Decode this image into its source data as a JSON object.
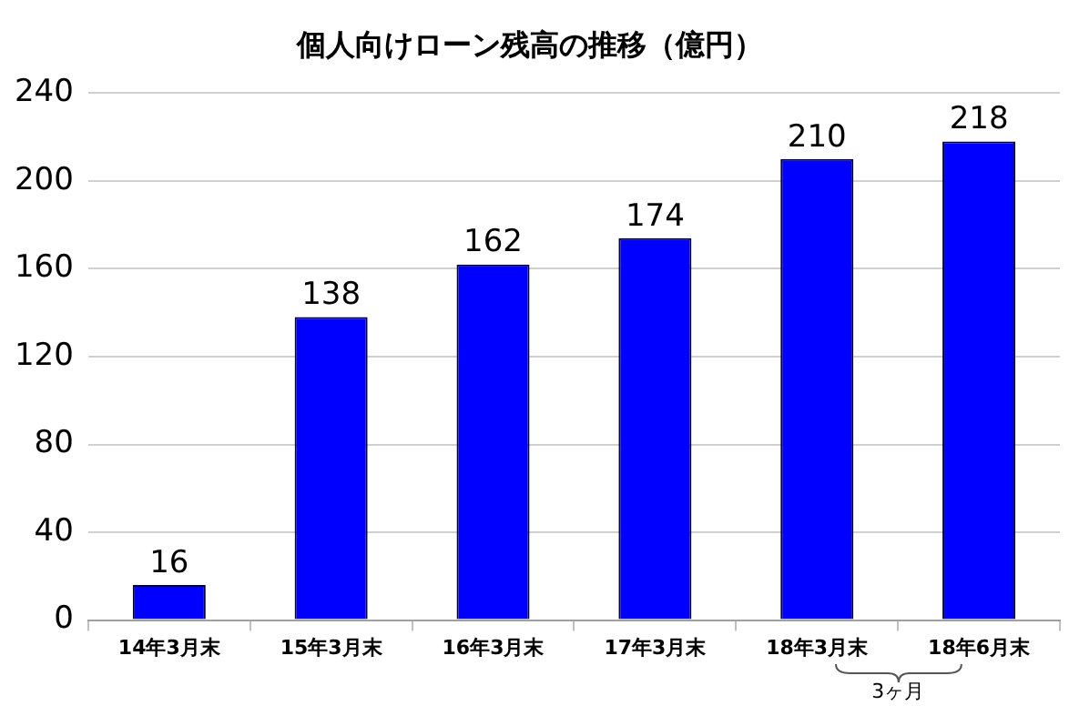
{
  "chart_data": {
    "type": "bar",
    "title": "個人向けローン残高の推移（億円）",
    "categories": [
      "14年3月末",
      "15年3月末",
      "16年3月末",
      "17年3月末",
      "18年3月末",
      "18年6月末"
    ],
    "values": [
      16,
      138,
      162,
      174,
      210,
      218
    ],
    "color": "#0000ff",
    "ylim": [
      0,
      240
    ],
    "yticks": [
      0,
      40,
      80,
      120,
      160,
      200,
      240
    ],
    "grid": "y",
    "data_labels": true,
    "legend": false,
    "annotations": [
      "3ヶ月"
    ]
  }
}
